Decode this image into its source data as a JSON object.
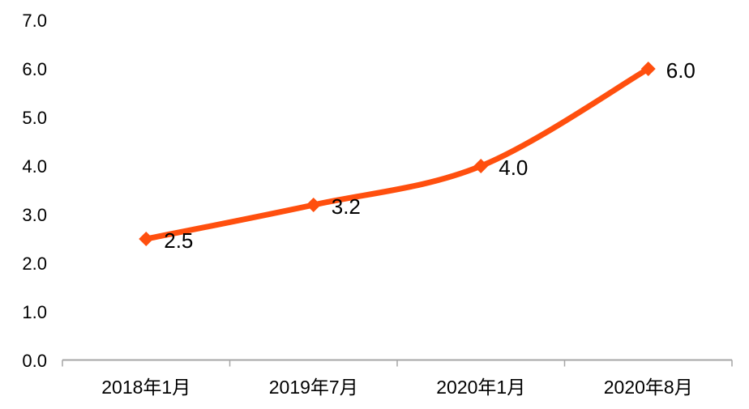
{
  "chart_data": {
    "type": "line",
    "smooth": true,
    "title": "",
    "xlabel": "",
    "ylabel": "",
    "categories": [
      "2018年1月",
      "2019年7月",
      "2020年1月",
      "2020年8月"
    ],
    "values": [
      2.5,
      3.2,
      4.0,
      6.0
    ],
    "data_labels": [
      "2.5",
      "3.2",
      "4.0",
      "6.0"
    ],
    "y_ticks": [
      "0.0",
      "1.0",
      "2.0",
      "3.0",
      "4.0",
      "5.0",
      "6.0",
      "7.0"
    ],
    "ylim": [
      0.0,
      7.0
    ],
    "y_tick_step": 1.0,
    "grid": false,
    "legend": "none",
    "marker": "diamond",
    "data_label_position": "right",
    "colors": {
      "line": "#FF4F0E",
      "marker": "#FF4F0E",
      "axis": "#A6A6A6",
      "text": "#000000"
    }
  }
}
